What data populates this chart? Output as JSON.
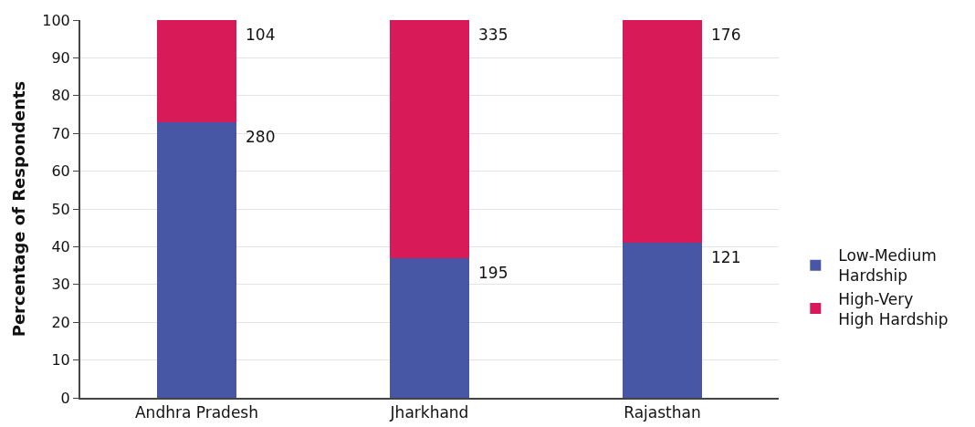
{
  "chart_data": {
    "type": "bar",
    "stacked": true,
    "ylabel": "Percentage of Respondents",
    "categories": [
      "Andhra Pradesh",
      "Jharkhand",
      "Rajasthan"
    ],
    "series": [
      {
        "name": "Low-Medium Hardship",
        "color": "#4757a6",
        "values": [
          73,
          37,
          41
        ]
      },
      {
        "name": "High-Very High Hardship",
        "color": "#d81b58",
        "values": [
          27,
          63,
          59
        ]
      }
    ],
    "annotations": [
      "280",
      "195",
      "121",
      "104",
      "335",
      "176"
    ],
    "ylim": [
      0,
      100
    ],
    "yticks": [
      0,
      10,
      20,
      30,
      40,
      50,
      60,
      70,
      80,
      90,
      100
    ],
    "grid": "y",
    "legend": "right"
  }
}
